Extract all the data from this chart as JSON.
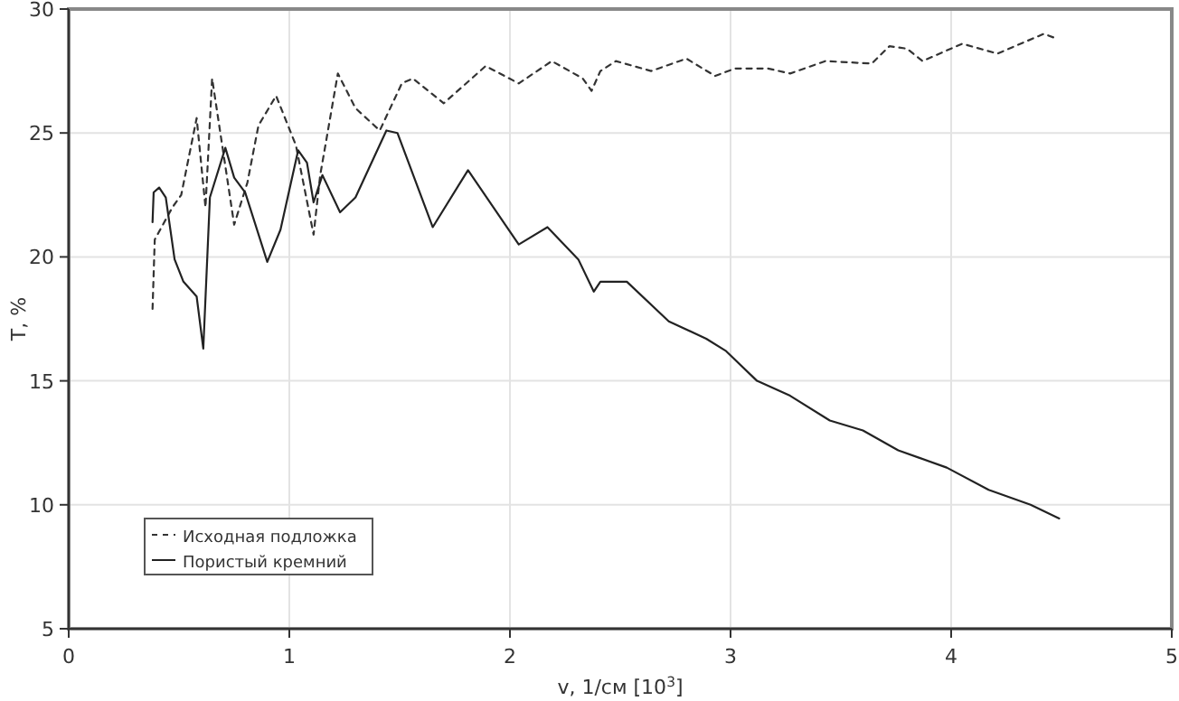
{
  "chart_data": {
    "type": "line",
    "xlabel": "v, 1/см [10$^{3}$]",
    "ylabel": "T, %",
    "xlim": [
      0,
      5
    ],
    "ylim": [
      5,
      30
    ],
    "xticks": [
      0,
      1,
      2,
      3,
      4,
      5
    ],
    "yticks": [
      5,
      10,
      15,
      20,
      25,
      30
    ],
    "grid": true,
    "legend": "bottom left",
    "series": [
      {
        "name": "Исходная подложка",
        "color": "#333333",
        "line_style": "dashed",
        "x": [
          0.38,
          0.39,
          0.47,
          0.51,
          0.58,
          0.62,
          0.65,
          0.75,
          0.81,
          0.86,
          0.94,
          1.03,
          1.11,
          1.14,
          1.22,
          1.3,
          1.41,
          1.51,
          1.56,
          1.7,
          1.89,
          2.04,
          2.19,
          2.33,
          2.37,
          2.41,
          2.48,
          2.64,
          2.8,
          2.93,
          3.02,
          3.17,
          3.27,
          3.43,
          3.64,
          3.72,
          3.8,
          3.87,
          4.05,
          4.21,
          4.42,
          4.48
        ],
        "values": [
          17.9,
          20.7,
          22,
          22.5,
          25.6,
          22,
          27.2,
          21.3,
          23,
          25.3,
          26.5,
          24.5,
          20.9,
          23.3,
          27.4,
          26,
          25.1,
          27,
          27.2,
          26.2,
          27.7,
          27,
          27.9,
          27.2,
          26.7,
          27.5,
          27.9,
          27.5,
          28,
          27.3,
          27.6,
          27.6,
          27.4,
          27.9,
          27.8,
          28.5,
          28.4,
          27.9,
          28.6,
          28.2,
          29,
          28.8
        ]
      },
      {
        "name": "Пористый кремний",
        "color": "#222222",
        "line_style": "solid",
        "x": [
          0.38,
          0.385,
          0.41,
          0.44,
          0.48,
          0.52,
          0.58,
          0.61,
          0.64,
          0.71,
          0.75,
          0.8,
          0.9,
          0.96,
          1.04,
          1.08,
          1.11,
          1.15,
          1.23,
          1.3,
          1.44,
          1.49,
          1.65,
          1.81,
          2.04,
          2.17,
          2.31,
          2.38,
          2.41,
          2.53,
          2.72,
          2.89,
          2.98,
          3.12,
          3.27,
          3.45,
          3.6,
          3.76,
          3.98,
          4.17,
          4.36,
          4.49
        ],
        "values": [
          21.4,
          22.6,
          22.8,
          22.4,
          19.9,
          19,
          18.4,
          16.3,
          22.4,
          24.4,
          23.2,
          22.6,
          19.8,
          21.1,
          24.3,
          23.8,
          22.2,
          23.3,
          21.8,
          22.4,
          25.1,
          25,
          21.2,
          23.5,
          20.5,
          21.2,
          19.9,
          18.6,
          19,
          19,
          17.4,
          16.7,
          16.2,
          15,
          14.4,
          13.4,
          13,
          12.2,
          11.5,
          10.6,
          10,
          9.45
        ]
      }
    ]
  }
}
